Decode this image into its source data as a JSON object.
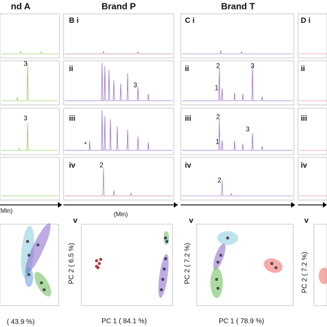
{
  "headers": [
    "nd A",
    "Brand P",
    "Brand T"
  ],
  "panels": {
    "B": [
      "B i",
      "ii",
      "iii",
      "iv",
      "v"
    ],
    "C": [
      "C i",
      "ii",
      "iii",
      "iv",
      "v"
    ],
    "D": [
      "D i",
      "ii",
      "iii",
      "iv",
      "v"
    ]
  },
  "peak_labels": {
    "A": [
      "3",
      "3"
    ],
    "B": [
      "3",
      "*",
      "2"
    ],
    "C": [
      "2",
      "1",
      "3",
      "2",
      "1",
      "3",
      "2"
    ]
  },
  "time_axis": [
    "(Min)",
    "(Min)"
  ],
  "pca": {
    "A": {
      "x_label": "( 43.9 %)"
    },
    "B": {
      "x_label": "PC 1 ( 84.1 %)",
      "y_label": "PC 2 ( 6.5 %)"
    },
    "C": {
      "x_label": "PC 1 ( 78.9 %)",
      "y_label": "PC 2 ( 7.2 %)"
    },
    "D": {
      "y_label": "PC 2 ( 7.2 %)"
    }
  }
}
